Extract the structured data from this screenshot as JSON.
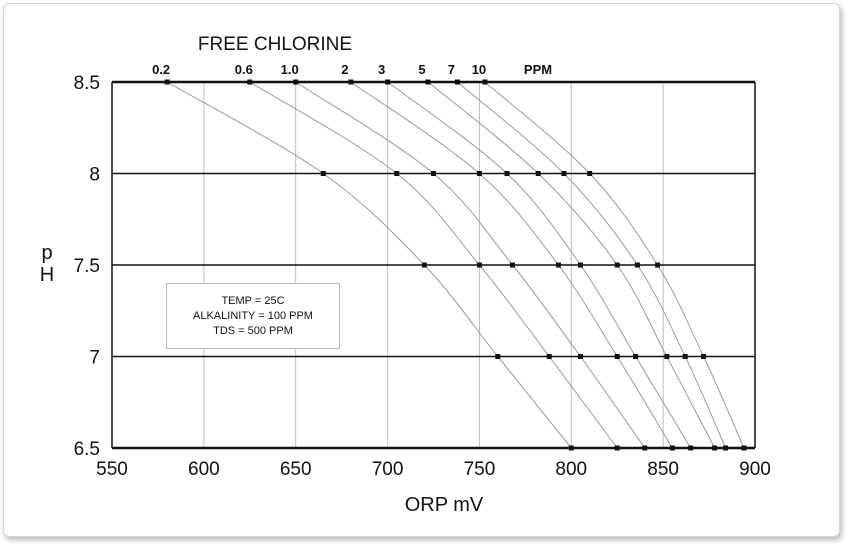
{
  "chart_data": {
    "type": "line",
    "title": "FREE CHLORINE",
    "xlabel": "ORP mV",
    "ylabel": "pH",
    "xlim": [
      550,
      900
    ],
    "ylim": [
      6.5,
      8.5
    ],
    "x_ticks": [
      "550",
      "600",
      "650",
      "700",
      "750",
      "800",
      "850",
      "900"
    ],
    "y_ticks": [
      "6.5",
      "7",
      "7.5",
      "8",
      "8.5"
    ],
    "unit_label": "PPM",
    "grid": true,
    "series": [
      {
        "name": "0.2",
        "points": [
          [
            580,
            8.5
          ],
          [
            665,
            8
          ],
          [
            720,
            7.5
          ],
          [
            760,
            7
          ],
          [
            800,
            6.5
          ]
        ]
      },
      {
        "name": "0.6",
        "points": [
          [
            625,
            8.5
          ],
          [
            705,
            8
          ],
          [
            750,
            7.5
          ],
          [
            788,
            7
          ],
          [
            825,
            6.5
          ]
        ]
      },
      {
        "name": "1.0",
        "points": [
          [
            650,
            8.5
          ],
          [
            725,
            8
          ],
          [
            768,
            7.5
          ],
          [
            805,
            7
          ],
          [
            840,
            6.5
          ]
        ]
      },
      {
        "name": "2",
        "points": [
          [
            680,
            8.5
          ],
          [
            750,
            8
          ],
          [
            793,
            7.5
          ],
          [
            825,
            7
          ],
          [
            855,
            6.5
          ]
        ]
      },
      {
        "name": "3",
        "points": [
          [
            700,
            8.5
          ],
          [
            765,
            8
          ],
          [
            805,
            7.5
          ],
          [
            835,
            7
          ],
          [
            865,
            6.5
          ]
        ]
      },
      {
        "name": "5",
        "points": [
          [
            722,
            8.5
          ],
          [
            782,
            8
          ],
          [
            825,
            7.5
          ],
          [
            852,
            7
          ],
          [
            878,
            6.5
          ]
        ]
      },
      {
        "name": "7",
        "points": [
          [
            738,
            8.5
          ],
          [
            796,
            8
          ],
          [
            836,
            7.5
          ],
          [
            862,
            7
          ],
          [
            884,
            6.5
          ]
        ]
      },
      {
        "name": "10",
        "points": [
          [
            753,
            8.5
          ],
          [
            810,
            8
          ],
          [
            847,
            7.5
          ],
          [
            872,
            7
          ],
          [
            894,
            6.5
          ]
        ]
      }
    ],
    "annotation": [
      "TEMP = 25C",
      "ALKALINITY = 100 PPM",
      "TDS = 500 PPM"
    ]
  }
}
